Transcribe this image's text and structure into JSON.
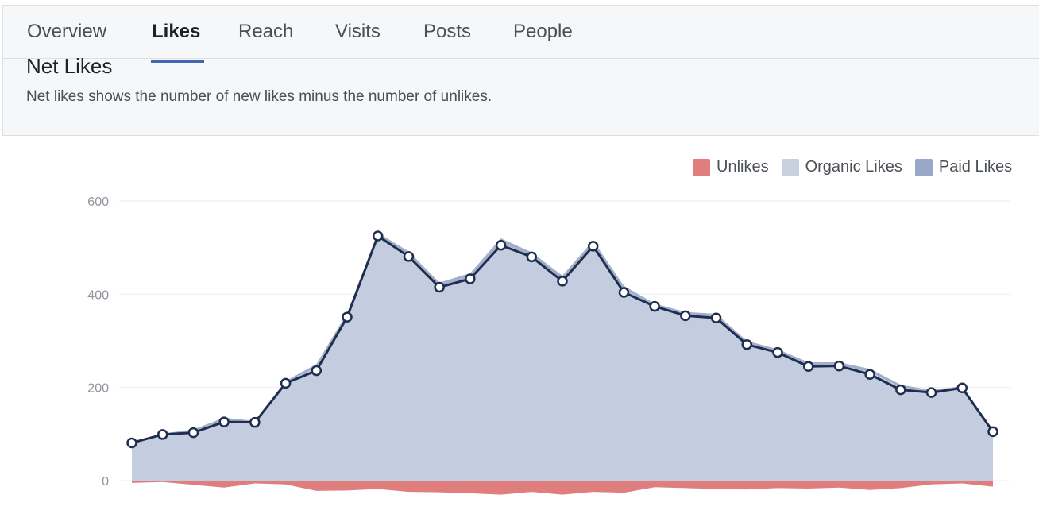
{
  "tabs": [
    {
      "label": "Overview",
      "active": false
    },
    {
      "label": "Likes",
      "active": true
    },
    {
      "label": "Reach",
      "active": false
    },
    {
      "label": "Visits",
      "active": false
    },
    {
      "label": "Posts",
      "active": false
    },
    {
      "label": "People",
      "active": false
    }
  ],
  "section": {
    "title": "Net Likes",
    "description": "Net likes shows the number of new likes minus the number of unlikes."
  },
  "legend": [
    {
      "label": "Unlikes",
      "color": "#e07e7e"
    },
    {
      "label": "Organic Likes",
      "color": "#c8d0e0"
    },
    {
      "label": "Paid Likes",
      "color": "#9aa8c8"
    }
  ],
  "colors": {
    "net_line": "#1f2d4f",
    "unlikes": "#e07e7e",
    "organic": "#c4cde0",
    "paid": "#a3b0cc",
    "active_tab_underline": "#4267b2"
  },
  "chart_data": {
    "type": "area",
    "y_ticks": [
      "600",
      "400",
      "200",
      "0"
    ],
    "ylim": [
      0,
      600
    ],
    "grid": true,
    "legend_position": "top-right",
    "series": [
      {
        "name": "Net Likes",
        "values": [
          81,
          99,
          103,
          126,
          125,
          209,
          236,
          351,
          525,
          481,
          415,
          433,
          505,
          480,
          428,
          503,
          404,
          374,
          354,
          349,
          292,
          275,
          245,
          246,
          228,
          195,
          189,
          199,
          105
        ]
      },
      {
        "name": "Organic Likes",
        "values": [
          84,
          101,
          110,
          135,
          128,
          214,
          250,
          360,
          532,
          492,
          425,
          445,
          520,
          490,
          440,
          515,
          418,
          380,
          362,
          358,
          300,
          282,
          254,
          254,
          240,
          206,
          194,
          203,
          108
        ]
      },
      {
        "name": "Paid Likes",
        "values": [
          3,
          3,
          6,
          9,
          4,
          6,
          12,
          10,
          11,
          16,
          14,
          15,
          16,
          14,
          15,
          14,
          14,
          7,
          10,
          11,
          12,
          11,
          11,
          10,
          11,
          8,
          6,
          4,
          6
        ]
      },
      {
        "name": "Unlikes",
        "values": [
          -5,
          -3,
          -9,
          -15,
          -6,
          -8,
          -22,
          -21,
          -18,
          -24,
          -25,
          -27,
          -30,
          -24,
          -30,
          -24,
          -26,
          -14,
          -16,
          -18,
          -19,
          -16,
          -17,
          -15,
          -20,
          -16,
          -8,
          -6,
          -13
        ]
      }
    ]
  }
}
